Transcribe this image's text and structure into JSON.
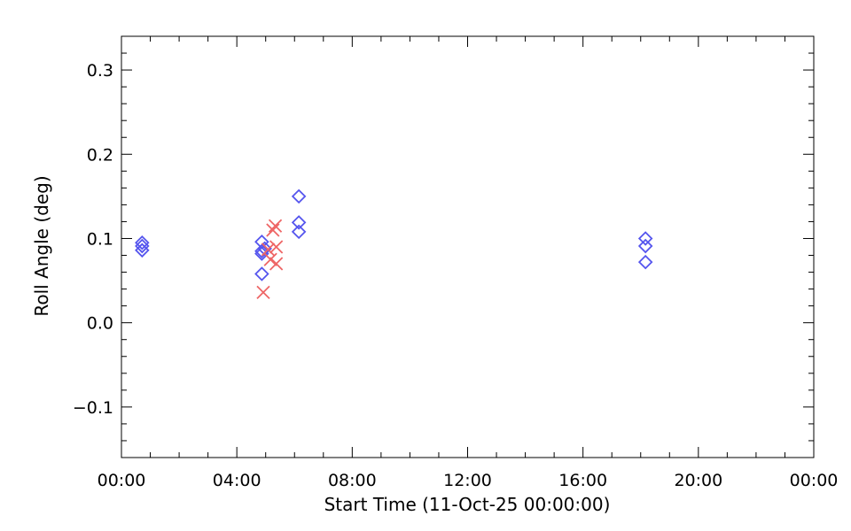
{
  "chart_data": {
    "type": "scatter",
    "xlabel": "Start Time (11-Oct-25 00:00:00)",
    "ylabel": "Roll Angle (deg)",
    "xlim": [
      "00:00",
      "24:00"
    ],
    "ylim": [
      -0.16,
      0.34
    ],
    "x_ticks": [
      "00:00",
      "04:00",
      "08:00",
      "12:00",
      "16:00",
      "20:00",
      "00:00"
    ],
    "y_ticks": [
      "−0.1",
      "0.0",
      "0.1",
      "0.2",
      "0.3"
    ],
    "grid": false,
    "series": [
      {
        "marker": "diamond",
        "color": "#5555ee",
        "points": [
          {
            "x": "00:43",
            "y": 0.086
          },
          {
            "x": "00:43",
            "y": 0.091
          },
          {
            "x": "00:43",
            "y": 0.095
          },
          {
            "x": "04:52",
            "y": 0.096
          },
          {
            "x": "04:52",
            "y": 0.085
          },
          {
            "x": "04:52",
            "y": 0.082
          },
          {
            "x": "04:52",
            "y": 0.058
          },
          {
            "x": "04:58",
            "y": 0.088
          },
          {
            "x": "06:09",
            "y": 0.15
          },
          {
            "x": "06:09",
            "y": 0.119
          },
          {
            "x": "06:09",
            "y": 0.108
          },
          {
            "x": "18:10",
            "y": 0.1
          },
          {
            "x": "18:10",
            "y": 0.091
          },
          {
            "x": "18:10",
            "y": 0.072
          }
        ]
      },
      {
        "marker": "x",
        "color": "#ee6666",
        "points": [
          {
            "x": "04:55",
            "y": 0.036
          },
          {
            "x": "05:05",
            "y": 0.087
          },
          {
            "x": "05:10",
            "y": 0.075
          },
          {
            "x": "05:15",
            "y": 0.11
          },
          {
            "x": "05:20",
            "y": 0.115
          },
          {
            "x": "05:22",
            "y": 0.09
          },
          {
            "x": "05:22",
            "y": 0.07
          }
        ]
      }
    ]
  }
}
